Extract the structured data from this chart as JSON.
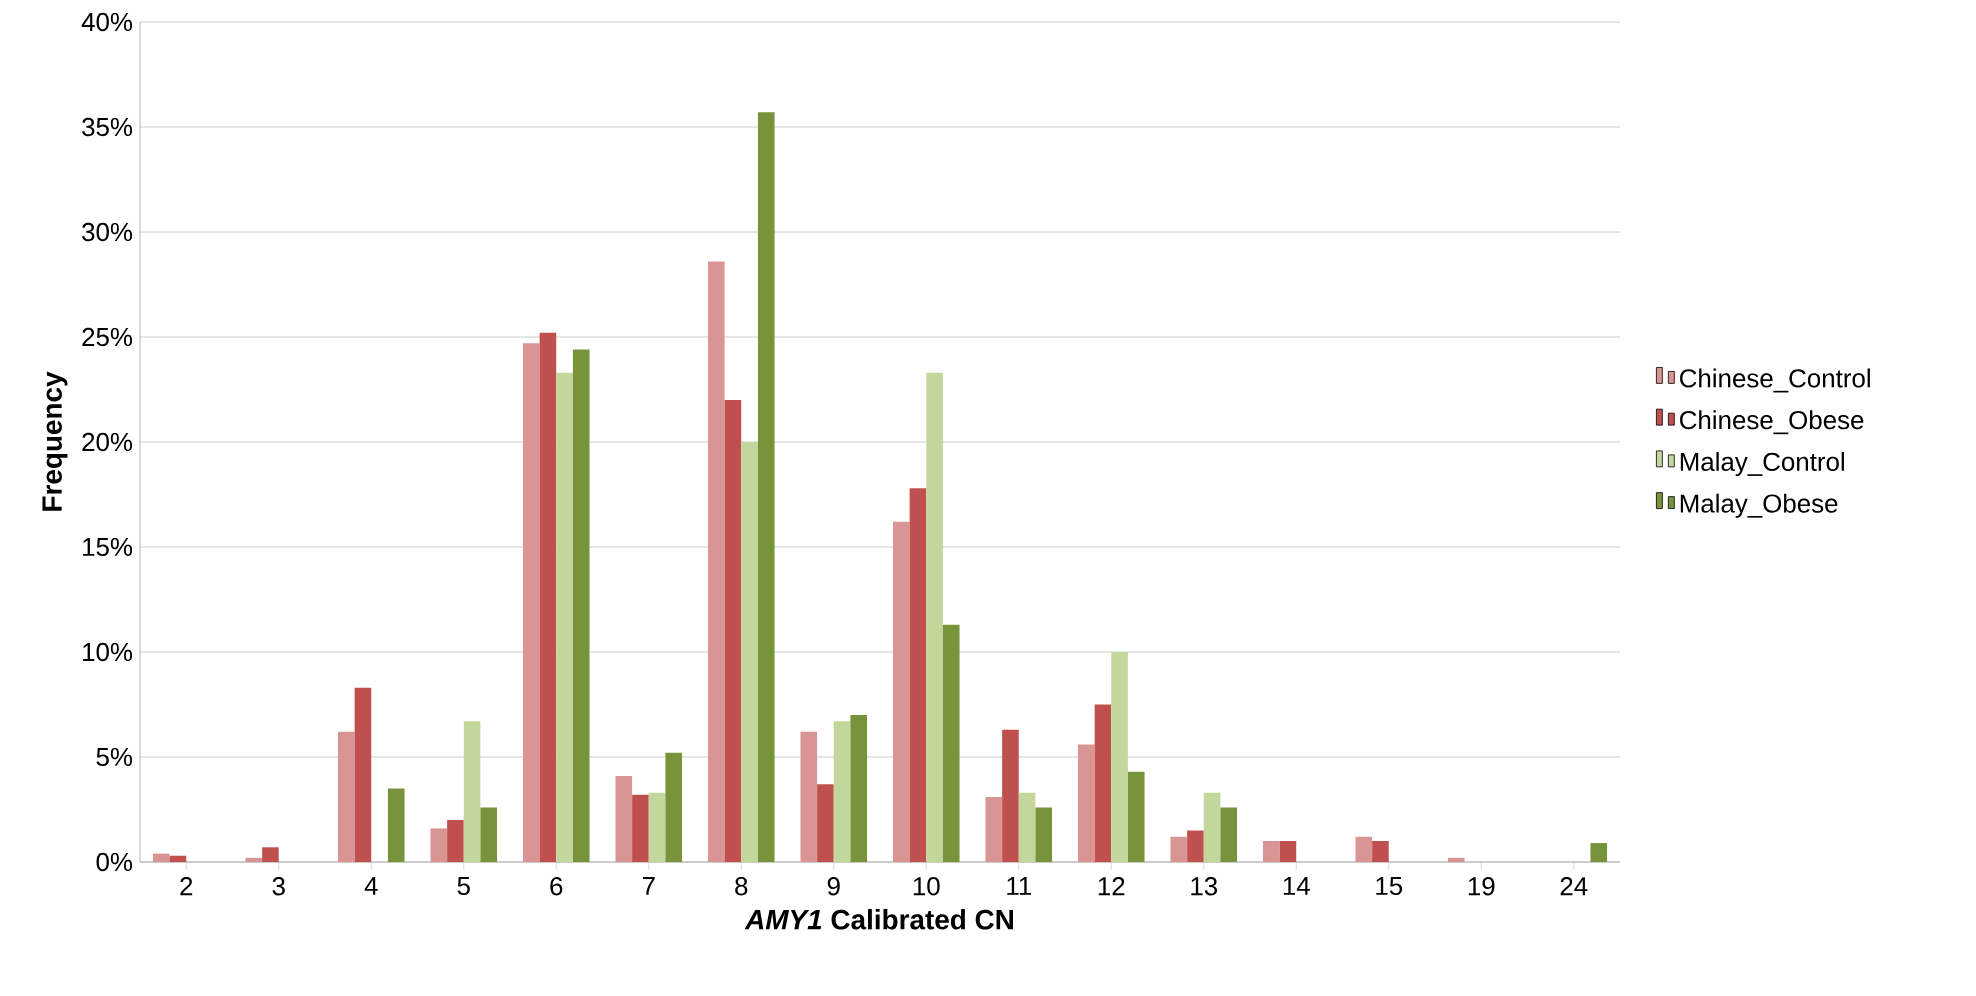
{
  "chart_data": {
    "type": "bar",
    "xlabel": "*AMY1* Calibrated CN",
    "ylabel": "Frequency",
    "categories": [
      "2",
      "3",
      "4",
      "5",
      "6",
      "7",
      "8",
      "9",
      "10",
      "11",
      "12",
      "13",
      "14",
      "15",
      "19",
      "24"
    ],
    "series": [
      {
        "name": "Chinese_Control",
        "color": "#d99594",
        "values": [
          0.4,
          0.2,
          6.2,
          1.6,
          24.7,
          4.1,
          28.6,
          6.2,
          16.2,
          3.1,
          5.6,
          1.2,
          1.0,
          1.2,
          0.2,
          0
        ]
      },
      {
        "name": "Chinese_Obese",
        "color": "#c0504d",
        "values": [
          0.3,
          0.7,
          8.3,
          2.0,
          25.2,
          3.2,
          22.0,
          3.7,
          17.8,
          6.3,
          7.5,
          1.5,
          1.0,
          1.0,
          0,
          0
        ]
      },
      {
        "name": "Malay_Control",
        "color": "#c3d69b",
        "values": [
          0,
          0,
          0,
          6.7,
          23.3,
          3.3,
          20.0,
          6.7,
          23.3,
          3.3,
          10.0,
          3.3,
          0,
          0,
          0,
          0
        ]
      },
      {
        "name": "Malay_Obese",
        "color": "#77933c",
        "values": [
          0,
          0,
          3.5,
          2.6,
          24.4,
          5.2,
          35.7,
          7.0,
          11.3,
          2.6,
          4.3,
          2.6,
          0,
          0,
          0,
          0.9
        ]
      }
    ],
    "ylim": [
      0,
      40
    ],
    "yticks": [
      {
        "value": 0,
        "label": "0%"
      },
      {
        "value": 5,
        "label": "5%"
      },
      {
        "value": 10,
        "label": "10%"
      },
      {
        "value": 15,
        "label": "15%"
      },
      {
        "value": 20,
        "label": "20%"
      },
      {
        "value": 25,
        "label": "25%"
      },
      {
        "value": 30,
        "label": "30%"
      },
      {
        "value": 35,
        "label": "35%"
      },
      {
        "value": 40,
        "label": "40%"
      }
    ],
    "grid": "y",
    "legend": "right"
  }
}
